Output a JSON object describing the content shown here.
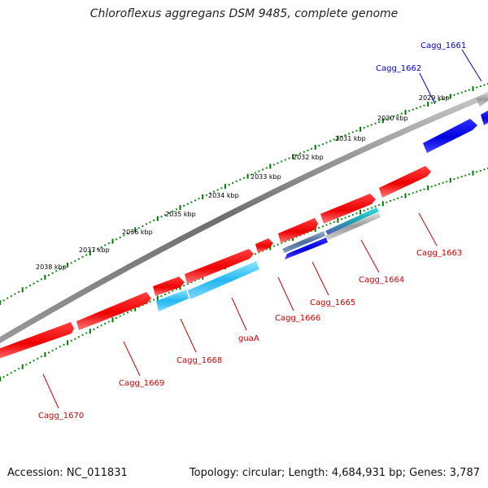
{
  "title": "Chloroflexus aggregans DSM 9485, complete genome",
  "footer": {
    "accession": "Accession: NC_011831",
    "summary": "Topology: circular; Length: 4,684,931 bp; Genes: 3,787"
  },
  "ticks": [
    "2029 kbp",
    "2030 kbp",
    "2031 kbp",
    "2032 kbp",
    "2033 kbp",
    "2034 kbp",
    "2035 kbp",
    "2036 kbp",
    "2037 kbp",
    "2038 kbp"
  ],
  "genes": [
    {
      "name": "Cagg_1661",
      "color": "#0000cc"
    },
    {
      "name": "Cagg_1662",
      "color": "#0000cc"
    },
    {
      "name": "Cagg_1663",
      "color": "#cc0000"
    },
    {
      "name": "Cagg_1664",
      "color": "#cc0000"
    },
    {
      "name": "Cagg_1665",
      "color": "#cc0000"
    },
    {
      "name": "Cagg_1666",
      "color": "#cc0000"
    },
    {
      "name": "guaA",
      "color": "#cc0000"
    },
    {
      "name": "Cagg_1668",
      "color": "#cc0000"
    },
    {
      "name": "Cagg_1669",
      "color": "#cc0000"
    },
    {
      "name": "Cagg_1670",
      "color": "#cc0000"
    }
  ]
}
